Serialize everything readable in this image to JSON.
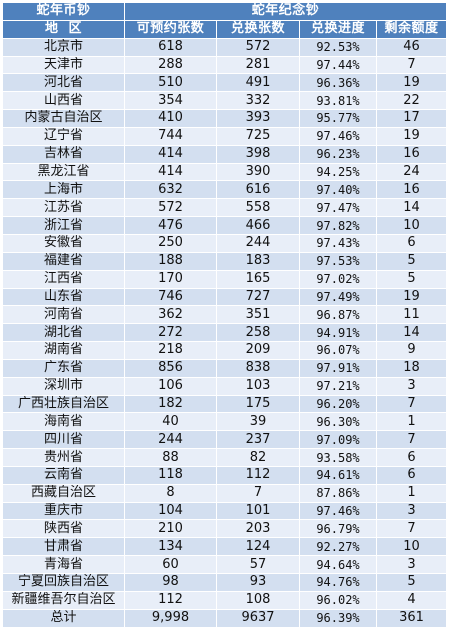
{
  "header": {
    "group_left": "蛇年币钞",
    "group_right": "蛇年纪念钞",
    "col_region": "地  区",
    "col_reserved": "可预约张数",
    "col_exchanged": "兑换张数",
    "col_progress": "兑换进度",
    "col_remaining": "剩余额度"
  },
  "rows": [
    {
      "region": "北京市",
      "reserved": "618",
      "exchanged": "572",
      "progress": "92.53%",
      "remaining": "46"
    },
    {
      "region": "天津市",
      "reserved": "288",
      "exchanged": "281",
      "progress": "97.44%",
      "remaining": "7"
    },
    {
      "region": "河北省",
      "reserved": "510",
      "exchanged": "491",
      "progress": "96.36%",
      "remaining": "19"
    },
    {
      "region": "山西省",
      "reserved": "354",
      "exchanged": "332",
      "progress": "93.81%",
      "remaining": "22"
    },
    {
      "region": "内蒙古自治区",
      "reserved": "410",
      "exchanged": "393",
      "progress": "95.77%",
      "remaining": "17"
    },
    {
      "region": "辽宁省",
      "reserved": "744",
      "exchanged": "725",
      "progress": "97.46%",
      "remaining": "19"
    },
    {
      "region": "吉林省",
      "reserved": "414",
      "exchanged": "398",
      "progress": "96.23%",
      "remaining": "16"
    },
    {
      "region": "黑龙江省",
      "reserved": "414",
      "exchanged": "390",
      "progress": "94.25%",
      "remaining": "24"
    },
    {
      "region": "上海市",
      "reserved": "632",
      "exchanged": "616",
      "progress": "97.40%",
      "remaining": "16"
    },
    {
      "region": "江苏省",
      "reserved": "572",
      "exchanged": "558",
      "progress": "97.47%",
      "remaining": "14"
    },
    {
      "region": "浙江省",
      "reserved": "476",
      "exchanged": "466",
      "progress": "97.82%",
      "remaining": "10"
    },
    {
      "region": "安徽省",
      "reserved": "250",
      "exchanged": "244",
      "progress": "97.43%",
      "remaining": "6"
    },
    {
      "region": "福建省",
      "reserved": "188",
      "exchanged": "183",
      "progress": "97.53%",
      "remaining": "5"
    },
    {
      "region": "江西省",
      "reserved": "170",
      "exchanged": "165",
      "progress": "97.02%",
      "remaining": "5"
    },
    {
      "region": "山东省",
      "reserved": "746",
      "exchanged": "727",
      "progress": "97.49%",
      "remaining": "19"
    },
    {
      "region": "河南省",
      "reserved": "362",
      "exchanged": "351",
      "progress": "96.87%",
      "remaining": "11"
    },
    {
      "region": "湖北省",
      "reserved": "272",
      "exchanged": "258",
      "progress": "94.91%",
      "remaining": "14"
    },
    {
      "region": "湖南省",
      "reserved": "218",
      "exchanged": "209",
      "progress": "96.07%",
      "remaining": "9"
    },
    {
      "region": "广东省",
      "reserved": "856",
      "exchanged": "838",
      "progress": "97.91%",
      "remaining": "18"
    },
    {
      "region": "深圳市",
      "reserved": "106",
      "exchanged": "103",
      "progress": "97.21%",
      "remaining": "3"
    },
    {
      "region": "广西壮族自治区",
      "reserved": "182",
      "exchanged": "175",
      "progress": "96.20%",
      "remaining": "7"
    },
    {
      "region": "海南省",
      "reserved": "40",
      "exchanged": "39",
      "progress": "96.30%",
      "remaining": "1"
    },
    {
      "region": "四川省",
      "reserved": "244",
      "exchanged": "237",
      "progress": "97.09%",
      "remaining": "7"
    },
    {
      "region": "贵州省",
      "reserved": "88",
      "exchanged": "82",
      "progress": "93.58%",
      "remaining": "6"
    },
    {
      "region": "云南省",
      "reserved": "118",
      "exchanged": "112",
      "progress": "94.61%",
      "remaining": "6"
    },
    {
      "region": "西藏自治区",
      "reserved": "8",
      "exchanged": "7",
      "progress": "87.86%",
      "remaining": "1"
    },
    {
      "region": "重庆市",
      "reserved": "104",
      "exchanged": "101",
      "progress": "97.46%",
      "remaining": "3"
    },
    {
      "region": "陕西省",
      "reserved": "210",
      "exchanged": "203",
      "progress": "96.79%",
      "remaining": "7"
    },
    {
      "region": "甘肃省",
      "reserved": "134",
      "exchanged": "124",
      "progress": "92.27%",
      "remaining": "10"
    },
    {
      "region": "青海省",
      "reserved": "60",
      "exchanged": "57",
      "progress": "94.64%",
      "remaining": "3"
    },
    {
      "region": "宁夏回族自治区",
      "reserved": "98",
      "exchanged": "93",
      "progress": "94.76%",
      "remaining": "5"
    },
    {
      "region": "新疆维吾尔自治区",
      "reserved": "112",
      "exchanged": "108",
      "progress": "96.02%",
      "remaining": "4"
    }
  ],
  "total": {
    "label": "总计",
    "reserved": "9,998",
    "exchanged": "9637",
    "progress": "96.39%",
    "remaining": "361"
  },
  "colors": {
    "header_bg": "#4f81bd",
    "row_dark": "#d3dff0",
    "row_light": "#e8eef8"
  }
}
